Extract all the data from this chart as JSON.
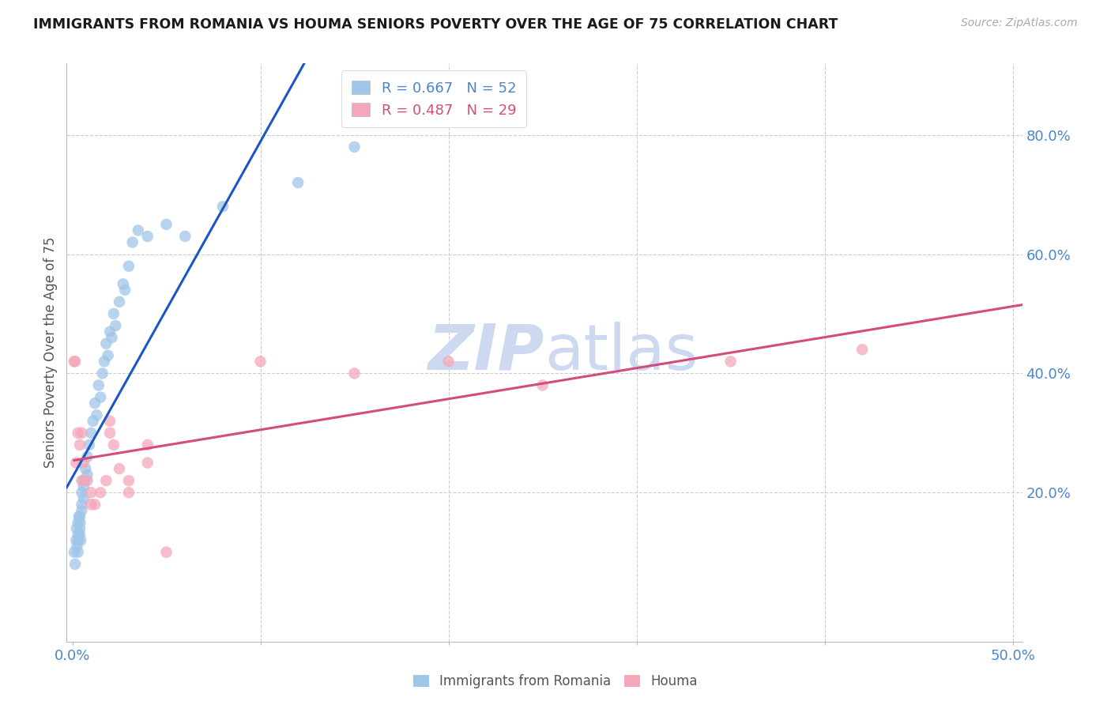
{
  "title": "IMMIGRANTS FROM ROMANIA VS HOUMA SENIORS POVERTY OVER THE AGE OF 75 CORRELATION CHART",
  "source": "Source: ZipAtlas.com",
  "ylabel": "Seniors Poverty Over the Age of 75",
  "xlim": [
    -0.003,
    0.505
  ],
  "ylim": [
    -0.05,
    0.92
  ],
  "xticks": [
    0.0,
    0.1,
    0.2,
    0.3,
    0.4,
    0.5
  ],
  "yticks": [
    0.2,
    0.4,
    0.6,
    0.8
  ],
  "xtick_labels_show": [
    "0.0%",
    "50.0%"
  ],
  "xtick_positions_show": [
    0.0,
    0.5
  ],
  "ytick_labels": [
    "20.0%",
    "40.0%",
    "60.0%",
    "80.0%"
  ],
  "legend_labels": [
    "Immigrants from Romania",
    "Houma"
  ],
  "r_romania": 0.667,
  "n_romania": 52,
  "r_houma": 0.487,
  "n_houma": 29,
  "color_romania": "#9fc5e8",
  "color_houma": "#f4a7b9",
  "color_line_romania": "#1a56c4",
  "color_line_houma": "#d44d7a",
  "color_tick": "#4a86c8",
  "watermark_zip_color": "#ccd9f0",
  "watermark_atlas_color": "#ccd9f0",
  "background_color": "#ffffff",
  "grid_color": "#cccccc",
  "romania_x": [
    0.001,
    0.0015,
    0.002,
    0.0022,
    0.0025,
    0.003,
    0.003,
    0.003,
    0.0032,
    0.0035,
    0.004,
    0.004,
    0.004,
    0.0042,
    0.0045,
    0.005,
    0.005,
    0.005,
    0.006,
    0.006,
    0.006,
    0.007,
    0.007,
    0.008,
    0.008,
    0.009,
    0.01,
    0.011,
    0.012,
    0.013,
    0.014,
    0.015,
    0.016,
    0.017,
    0.018,
    0.019,
    0.02,
    0.021,
    0.022,
    0.023,
    0.025,
    0.027,
    0.028,
    0.03,
    0.032,
    0.035,
    0.04,
    0.05,
    0.06,
    0.08,
    0.12,
    0.15
  ],
  "romania_y": [
    0.1,
    0.08,
    0.12,
    0.14,
    0.11,
    0.13,
    0.15,
    0.1,
    0.12,
    0.16,
    0.14,
    0.16,
    0.13,
    0.15,
    0.12,
    0.18,
    0.2,
    0.17,
    0.22,
    0.19,
    0.21,
    0.24,
    0.22,
    0.26,
    0.23,
    0.28,
    0.3,
    0.32,
    0.35,
    0.33,
    0.38,
    0.36,
    0.4,
    0.42,
    0.45,
    0.43,
    0.47,
    0.46,
    0.5,
    0.48,
    0.52,
    0.55,
    0.54,
    0.58,
    0.62,
    0.64,
    0.63,
    0.65,
    0.63,
    0.68,
    0.72,
    0.78
  ],
  "houma_x": [
    0.001,
    0.0015,
    0.002,
    0.003,
    0.004,
    0.005,
    0.006,
    0.008,
    0.01,
    0.012,
    0.015,
    0.018,
    0.02,
    0.022,
    0.025,
    0.03,
    0.04,
    0.05,
    0.1,
    0.15,
    0.2,
    0.25,
    0.35,
    0.42,
    0.005,
    0.01,
    0.02,
    0.03,
    0.04
  ],
  "houma_y": [
    0.42,
    0.42,
    0.25,
    0.3,
    0.28,
    0.22,
    0.25,
    0.22,
    0.2,
    0.18,
    0.2,
    0.22,
    0.3,
    0.28,
    0.24,
    0.22,
    0.25,
    0.1,
    0.42,
    0.4,
    0.42,
    0.38,
    0.42,
    0.44,
    0.3,
    0.18,
    0.32,
    0.2,
    0.28
  ]
}
